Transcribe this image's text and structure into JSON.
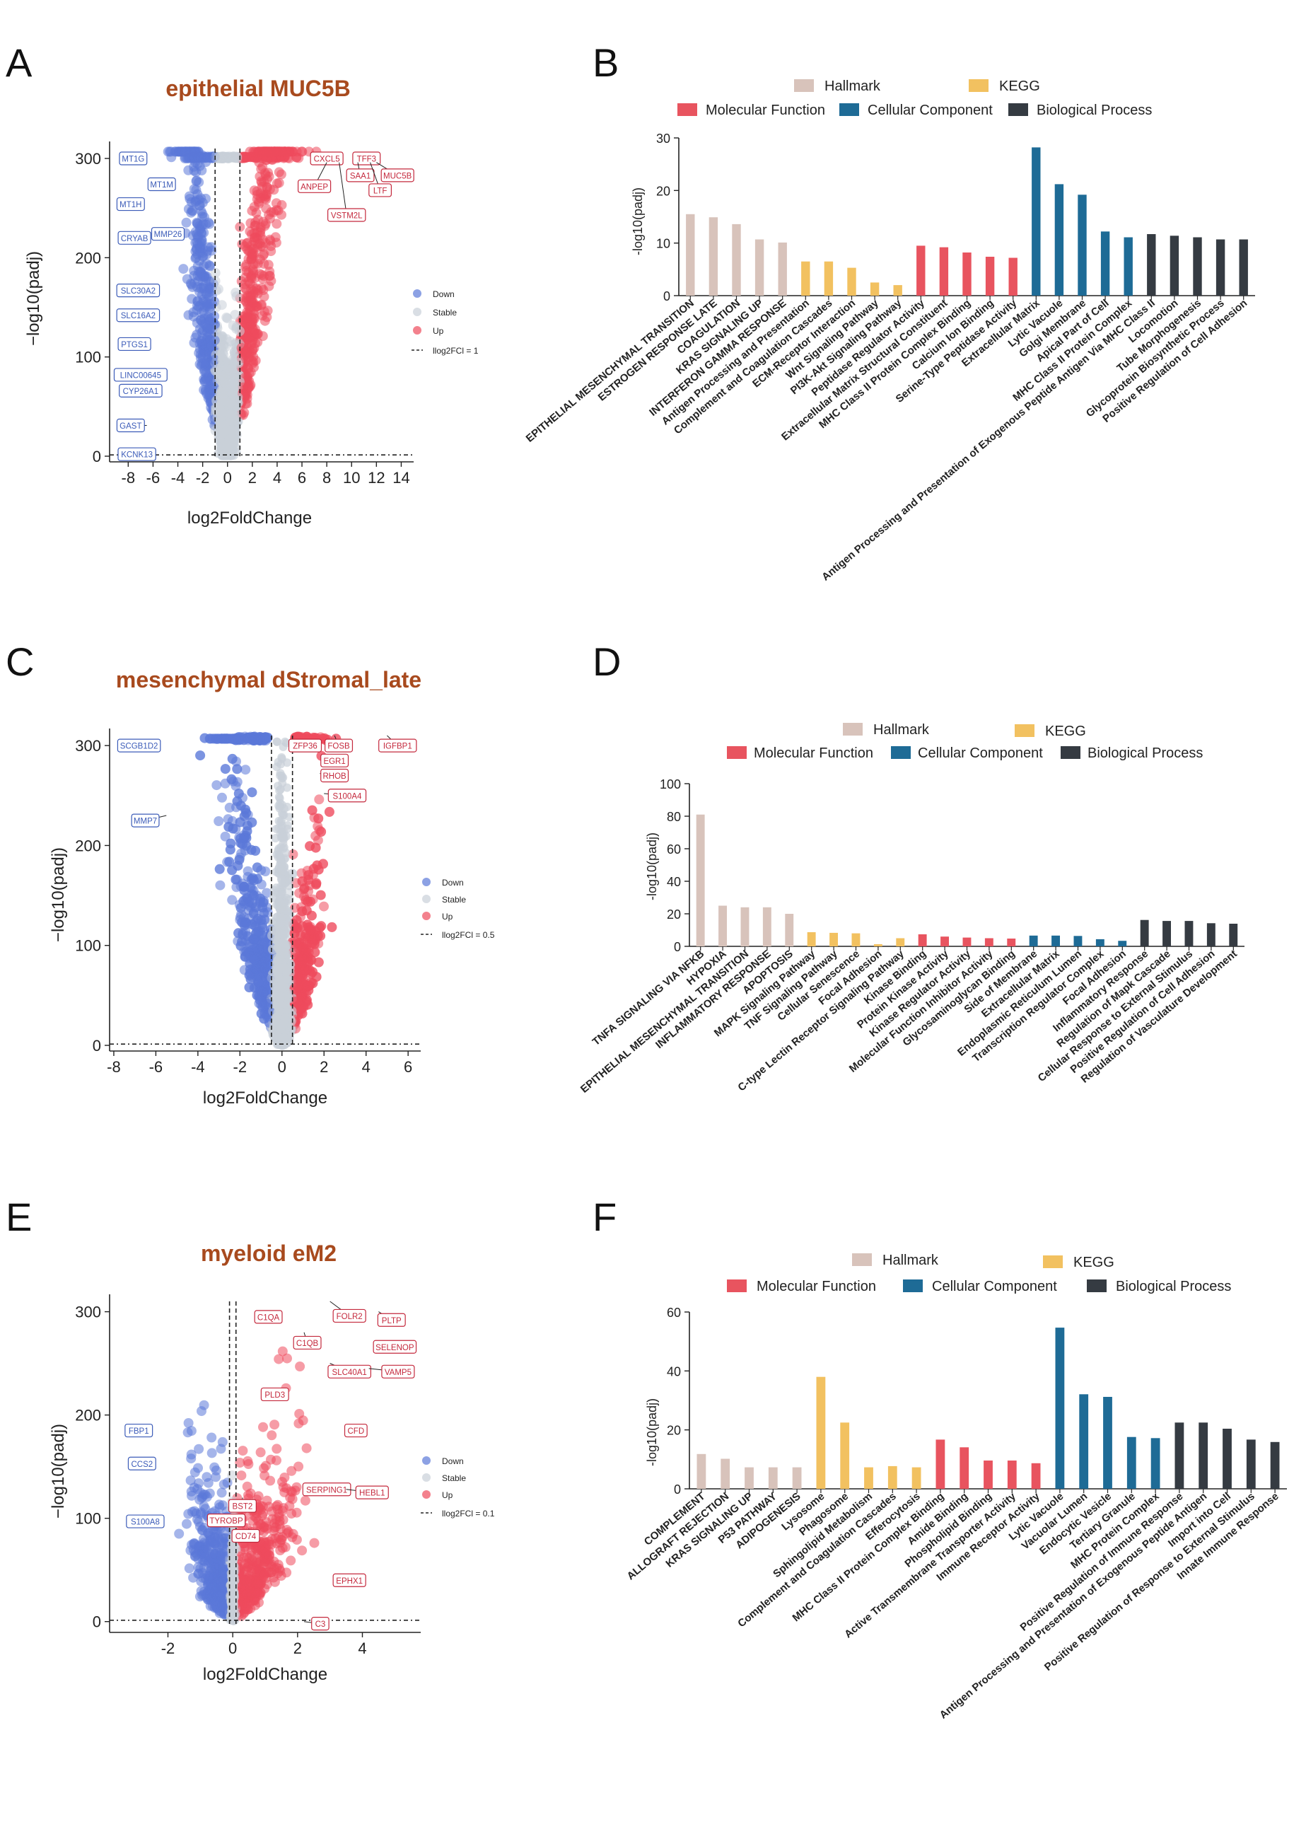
{
  "colors": {
    "title": "#a84a1e",
    "down": "#5b79d9",
    "stable": "#c9d0d9",
    "up": "#ee4b5d",
    "hallmark": "#d8c3bb",
    "kegg": "#f2c160",
    "molecular_function": "#e8545f",
    "cellular_component": "#1e6b96",
    "biological_process": "#353b42",
    "down_label": "#3b5bb8",
    "up_label": "#c4283c"
  },
  "legend_volcano": {
    "down": "Down",
    "stable": "Stable",
    "up": "Up"
  },
  "legend_bar": {
    "hallmark": "Hallmark",
    "kegg": "KEGG",
    "molecular_function": "Molecular Function",
    "cellular_component": "Cellular Component",
    "biological_process": "Biological Process"
  },
  "chart_data": [
    {
      "panel": "A",
      "type": "scatter",
      "title": "epithelial MUC5B",
      "xlabel": "log2FoldChange",
      "ylabel": "−log10(padj)",
      "xlim": [
        -9.5,
        15
      ],
      "ylim": [
        0,
        310
      ],
      "xticks": [
        -8,
        -6,
        -4,
        -2,
        0,
        2,
        4,
        6,
        8,
        10,
        12,
        14
      ],
      "yticks": [
        0,
        100,
        200,
        300
      ],
      "threshold_label": "llog2FCl = 1",
      "fc_threshold": 1,
      "padj_line": 1.3,
      "down_genes": [
        {
          "name": "MT1G",
          "x": -7.5,
          "y": 300,
          "lx": -7.6,
          "ly": 300
        },
        {
          "name": "MT1M",
          "x": -6.0,
          "y": 278,
          "lx": -5.3,
          "ly": 274
        },
        {
          "name": "MT1H",
          "x": -7.0,
          "y": 254,
          "lx": -7.8,
          "ly": 254
        },
        {
          "name": "CRYAB",
          "x": -6.5,
          "y": 220,
          "lx": -7.5,
          "ly": 220
        },
        {
          "name": "MMP26",
          "x": -5.0,
          "y": 224,
          "lx": -4.8,
          "ly": 224
        },
        {
          "name": "SLC30A2",
          "x": -6.5,
          "y": 167,
          "lx": -7.2,
          "ly": 167
        },
        {
          "name": "SLC16A2",
          "x": -6.0,
          "y": 142,
          "lx": -7.2,
          "ly": 142
        },
        {
          "name": "PTGS1",
          "x": -6.5,
          "y": 113,
          "lx": -7.5,
          "ly": 113
        },
        {
          "name": "LINC00645",
          "x": -5.5,
          "y": 82,
          "lx": -7.0,
          "ly": 82
        },
        {
          "name": "CYP26A1",
          "x": -5.5,
          "y": 66,
          "lx": -7.0,
          "ly": 66
        },
        {
          "name": "GAST",
          "x": -6.5,
          "y": 31,
          "lx": -7.8,
          "ly": 31
        },
        {
          "name": "KCNK13",
          "x": -6.0,
          "y": 3,
          "lx": -7.3,
          "ly": 2
        }
      ],
      "up_genes": [
        {
          "name": "CXCL5",
          "x": 9.0,
          "y": 300,
          "lx": 8.0,
          "ly": 300
        },
        {
          "name": "TFF3",
          "x": 11.0,
          "y": 300,
          "lx": 11.2,
          "ly": 300
        },
        {
          "name": "SAA1",
          "x": 10.5,
          "y": 296,
          "lx": 10.7,
          "ly": 283
        },
        {
          "name": "MUC5B",
          "x": 12.0,
          "y": 296,
          "lx": 13.7,
          "ly": 283
        },
        {
          "name": "ANPEP",
          "x": 8.0,
          "y": 296,
          "lx": 7.0,
          "ly": 272
        },
        {
          "name": "LTF",
          "x": 11.5,
          "y": 296,
          "lx": 12.3,
          "ly": 268
        },
        {
          "name": "VSTM2L",
          "x": 9.0,
          "y": 296,
          "lx": 9.6,
          "ly": 243
        }
      ]
    },
    {
      "panel": "B",
      "type": "bar",
      "ylabel": "-log10(padj)",
      "ylim": [
        0,
        30
      ],
      "yticks": [
        0,
        10,
        20,
        30
      ],
      "bars": [
        {
          "label": "EPITHELIAL MESENCHYMAL TRANSITION",
          "value": 15.5,
          "group": "hallmark"
        },
        {
          "label": "ESTROGEN RESPONSE LATE",
          "value": 14.9,
          "group": "hallmark"
        },
        {
          "label": "COAGULATION",
          "value": 13.6,
          "group": "hallmark"
        },
        {
          "label": "KRAS SIGNALING UP",
          "value": 10.7,
          "group": "hallmark"
        },
        {
          "label": "INTERFERON GAMMA RESPONSE",
          "value": 10.1,
          "group": "hallmark"
        },
        {
          "label": "Antigen Processing and Presentation",
          "value": 6.5,
          "group": "kegg"
        },
        {
          "label": "Complement and Coagulation Cascades",
          "value": 6.5,
          "group": "kegg"
        },
        {
          "label": "ECM-Receptor Interaction",
          "value": 5.3,
          "group": "kegg"
        },
        {
          "label": "Wnt Signaling Pathway",
          "value": 2.5,
          "group": "kegg"
        },
        {
          "label": "PI3K-Akt Signaling Pathway",
          "value": 2.0,
          "group": "kegg"
        },
        {
          "label": "Peptidase Regulator Activity",
          "value": 9.5,
          "group": "molecular_function"
        },
        {
          "label": "Extracellular Matrix Structural Constituent",
          "value": 9.2,
          "group": "molecular_function"
        },
        {
          "label": "MHC Class II Protein Complex Binding",
          "value": 8.2,
          "group": "molecular_function"
        },
        {
          "label": "Calcium Ion Binding",
          "value": 7.4,
          "group": "molecular_function"
        },
        {
          "label": "Serine-Type Peptidase Activity",
          "value": 7.2,
          "group": "molecular_function"
        },
        {
          "label": "Extracellular Matrix",
          "value": 28.2,
          "group": "cellular_component"
        },
        {
          "label": "Lytic Vacuole",
          "value": 21.2,
          "group": "cellular_component"
        },
        {
          "label": "Golgi Membrane",
          "value": 19.2,
          "group": "cellular_component"
        },
        {
          "label": "Apical Part of Cell",
          "value": 12.2,
          "group": "cellular_component"
        },
        {
          "label": "MHC Class II Protein Complex",
          "value": 11.1,
          "group": "cellular_component"
        },
        {
          "label": "Antigen Processing and Presentation of Exogenous Peptide Antigen Via MHC Class II",
          "value": 11.7,
          "group": "biological_process"
        },
        {
          "label": "Locomotion",
          "value": 11.4,
          "group": "biological_process"
        },
        {
          "label": "Tube Morphogenesis",
          "value": 11.1,
          "group": "biological_process"
        },
        {
          "label": "Glycoprotein Biosynthetic Process",
          "value": 10.7,
          "group": "biological_process"
        },
        {
          "label": "Positive Regulation of Cell Adhesion",
          "value": 10.7,
          "group": "biological_process"
        }
      ]
    },
    {
      "panel": "C",
      "type": "scatter",
      "title": "mesenchymal dStromal_late",
      "xlabel": "log2FoldChange",
      "ylabel": "−log10(padj)",
      "xlim": [
        -8.2,
        6.6
      ],
      "ylim": [
        0,
        310
      ],
      "xticks": [
        -8,
        -6,
        -4,
        -2,
        0,
        2,
        4,
        6
      ],
      "yticks": [
        0,
        100,
        200,
        300
      ],
      "threshold_label": "llog2FCl = 0.5",
      "fc_threshold": 0.5,
      "padj_line": 1.3,
      "down_genes": [
        {
          "name": "SCGB1D2",
          "x": -6.5,
          "y": 305,
          "lx": -6.8,
          "ly": 300
        },
        {
          "name": "MMP7",
          "x": -5.5,
          "y": 230,
          "lx": -6.5,
          "ly": 225
        }
      ],
      "up_genes": [
        {
          "name": "ZFP36",
          "x": 1.5,
          "y": 300,
          "lx": 1.1,
          "ly": 300
        },
        {
          "name": "FOSB",
          "x": 2.5,
          "y": 310,
          "lx": 2.7,
          "ly": 300
        },
        {
          "name": "IGFBP1",
          "x": 5.0,
          "y": 310,
          "lx": 5.5,
          "ly": 300
        },
        {
          "name": "EGR1",
          "x": 2.0,
          "y": 290,
          "lx": 2.5,
          "ly": 285
        },
        {
          "name": "RHOB",
          "x": 1.8,
          "y": 272,
          "lx": 2.5,
          "ly": 270
        },
        {
          "name": "S100A4",
          "x": 2.0,
          "y": 252,
          "lx": 3.1,
          "ly": 250
        }
      ]
    },
    {
      "panel": "D",
      "type": "bar",
      "ylabel": "-log10(padj)",
      "ylim": [
        0,
        100
      ],
      "yticks": [
        0,
        20,
        40,
        60,
        80,
        100
      ],
      "bars": [
        {
          "label": "TNFA SIGNALING VIA NFKB",
          "value": 81,
          "group": "hallmark"
        },
        {
          "label": "HYPOXIA",
          "value": 25,
          "group": "hallmark"
        },
        {
          "label": "EPITHELIAL MESENCHYMAL TRANSITION",
          "value": 24,
          "group": "hallmark"
        },
        {
          "label": "INFLAMMATORY RESPONSE",
          "value": 24,
          "group": "hallmark"
        },
        {
          "label": "APOPTOSIS",
          "value": 20,
          "group": "hallmark"
        },
        {
          "label": "MAPK Signaling Pathway",
          "value": 8.7,
          "group": "kegg"
        },
        {
          "label": "TNF Signaling Pathway",
          "value": 8.3,
          "group": "kegg"
        },
        {
          "label": "Cellular Senescence",
          "value": 8.0,
          "group": "kegg"
        },
        {
          "label": "Focal Adhesion",
          "value": 1.3,
          "group": "kegg"
        },
        {
          "label": "C-type Lectin Receptor Signaling Pathway",
          "value": 5.0,
          "group": "kegg"
        },
        {
          "label": "Kinase Binding",
          "value": 7.4,
          "group": "molecular_function"
        },
        {
          "label": "Protein Kinase Activity",
          "value": 6.0,
          "group": "molecular_function"
        },
        {
          "label": "Kinase Regulator Activity",
          "value": 5.4,
          "group": "molecular_function"
        },
        {
          "label": "Molecular Function Inhibitor Activity",
          "value": 5.0,
          "group": "molecular_function"
        },
        {
          "label": "Glycosaminoglycan Binding",
          "value": 4.8,
          "group": "molecular_function"
        },
        {
          "label": "Side of Membrane",
          "value": 6.6,
          "group": "cellular_component"
        },
        {
          "label": "Extracellular Matrix",
          "value": 6.6,
          "group": "cellular_component"
        },
        {
          "label": "Endoplasmic Reticulum Lumen",
          "value": 6.4,
          "group": "cellular_component"
        },
        {
          "label": "Transcription Regulator Complex",
          "value": 4.4,
          "group": "cellular_component"
        },
        {
          "label": "Focal Adhesion",
          "value": 3.4,
          "group": "cellular_component"
        },
        {
          "label": "Inflammatory Response",
          "value": 16.2,
          "group": "biological_process"
        },
        {
          "label": "Regulation of Mapk Cascade",
          "value": 15.6,
          "group": "biological_process"
        },
        {
          "label": "Cellular Response to External Stimulus",
          "value": 15.6,
          "group": "biological_process"
        },
        {
          "label": "Positive Regulation of Cell Adhesion",
          "value": 14.2,
          "group": "biological_process"
        },
        {
          "label": "Regulation of Vasculature Development",
          "value": 13.9,
          "group": "biological_process"
        }
      ]
    },
    {
      "panel": "E",
      "type": "scatter",
      "title": "myeloid eM2",
      "xlabel": "log2FoldChange",
      "ylabel": "−log10(padj)",
      "xlim": [
        -3.8,
        5.8
      ],
      "ylim": [
        -5,
        310
      ],
      "xticks": [
        -2,
        0,
        2,
        4
      ],
      "yticks": [
        0,
        100,
        200,
        300
      ],
      "threshold_label": "llog2FCl = 0.1",
      "fc_threshold": 0.1,
      "padj_line": 1.3,
      "down_genes": [
        {
          "name": "FBP1",
          "x": -2.8,
          "y": 190,
          "lx": -2.9,
          "ly": 185
        },
        {
          "name": "CCS2",
          "x": -2.6,
          "y": 158,
          "lx": -2.8,
          "ly": 153
        },
        {
          "name": "S100A8",
          "x": -2.8,
          "y": 100,
          "lx": -2.7,
          "ly": 97
        }
      ],
      "up_genes": [
        {
          "name": "C1QA",
          "x": 1.5,
          "y": 300,
          "lx": 1.1,
          "ly": 295
        },
        {
          "name": "FOLR2",
          "x": 3.0,
          "y": 310,
          "lx": 3.6,
          "ly": 296
        },
        {
          "name": "C1QB",
          "x": 2.2,
          "y": 280,
          "lx": 2.3,
          "ly": 270
        },
        {
          "name": "PLTP",
          "x": 4.5,
          "y": 300,
          "lx": 4.9,
          "ly": 292
        },
        {
          "name": "SELENOP",
          "x": 4.4,
          "y": 270,
          "lx": 5.0,
          "ly": 266
        },
        {
          "name": "SLC40A1",
          "x": 3.0,
          "y": 250,
          "lx": 3.6,
          "ly": 242
        },
        {
          "name": "VAMP5",
          "x": 4.2,
          "y": 245,
          "lx": 5.1,
          "ly": 242
        },
        {
          "name": "PLD3",
          "x": 1.5,
          "y": 225,
          "lx": 1.3,
          "ly": 220
        },
        {
          "name": "CFD",
          "x": 3.6,
          "y": 190,
          "lx": 3.8,
          "ly": 185
        },
        {
          "name": "SERPING1",
          "x": 2.5,
          "y": 128,
          "lx": 2.9,
          "ly": 128
        },
        {
          "name": "HEBL1",
          "x": 3.5,
          "y": 128,
          "lx": 4.3,
          "ly": 125
        },
        {
          "name": "BST2",
          "x": 0.3,
          "y": 120,
          "lx": 0.3,
          "ly": 112
        },
        {
          "name": "TYROBP",
          "x": 0.1,
          "y": 102,
          "lx": -0.2,
          "ly": 98
        },
        {
          "name": "CD74",
          "x": 0.5,
          "y": 90,
          "lx": 0.4,
          "ly": 83
        },
        {
          "name": "EPHX1",
          "x": 3.5,
          "y": 42,
          "lx": 3.6,
          "ly": 40
        },
        {
          "name": "C3",
          "x": 2.2,
          "y": 0,
          "lx": 2.7,
          "ly": -2
        }
      ]
    },
    {
      "panel": "F",
      "type": "bar",
      "ylabel": "-log10(padj)",
      "ylim": [
        0,
        60
      ],
      "yticks": [
        0,
        20,
        40,
        60
      ],
      "bars": [
        {
          "label": "COMPLEMENT",
          "value": 11.8,
          "group": "hallmark"
        },
        {
          "label": "ALLOGRAFT REJECTION",
          "value": 10.2,
          "group": "hallmark"
        },
        {
          "label": "KRAS SIGNALING UP",
          "value": 7.3,
          "group": "hallmark"
        },
        {
          "label": "P53 PATHWAY",
          "value": 7.3,
          "group": "hallmark"
        },
        {
          "label": "ADIPOGENESIS",
          "value": 7.3,
          "group": "hallmark"
        },
        {
          "label": "Lysosome",
          "value": 38,
          "group": "kegg"
        },
        {
          "label": "Phagosome",
          "value": 22.5,
          "group": "kegg"
        },
        {
          "label": "Sphingolipid Metabolism",
          "value": 7.3,
          "group": "kegg"
        },
        {
          "label": "Complement and Coagulation Cascades",
          "value": 7.7,
          "group": "kegg"
        },
        {
          "label": "Efferocytosis",
          "value": 7.3,
          "group": "kegg"
        },
        {
          "label": "MHC Class II Protein Complex Binding",
          "value": 16.7,
          "group": "molecular_function"
        },
        {
          "label": "Amide Binding",
          "value": 14.1,
          "group": "molecular_function"
        },
        {
          "label": "Phospholipid Binding",
          "value": 9.6,
          "group": "molecular_function"
        },
        {
          "label": "Active Transmembrane Transporter Activity",
          "value": 9.6,
          "group": "molecular_function"
        },
        {
          "label": "Immune Receptor Activity",
          "value": 8.7,
          "group": "molecular_function"
        },
        {
          "label": "Lytic Vacuole",
          "value": 54.7,
          "group": "cellular_component"
        },
        {
          "label": "Vacuolar Lumen",
          "value": 32.1,
          "group": "cellular_component"
        },
        {
          "label": "Endocytic Vesicle",
          "value": 31.2,
          "group": "cellular_component"
        },
        {
          "label": "Tertiary Granule",
          "value": 17.6,
          "group": "cellular_component"
        },
        {
          "label": "MHC Protein Complex",
          "value": 17.2,
          "group": "cellular_component"
        },
        {
          "label": "Positive Regulation of Immune Response",
          "value": 22.5,
          "group": "biological_process"
        },
        {
          "label": "Antigen Processing and Presentation of Exogenous Peptide Antigen",
          "value": 22.5,
          "group": "biological_process"
        },
        {
          "label": "Import into Cell",
          "value": 20.4,
          "group": "biological_process"
        },
        {
          "label": "Positive Regulation of Response to External Stimulus",
          "value": 16.7,
          "group": "biological_process"
        },
        {
          "label": "Innate Immune Response",
          "value": 15.9,
          "group": "biological_process"
        }
      ]
    }
  ]
}
